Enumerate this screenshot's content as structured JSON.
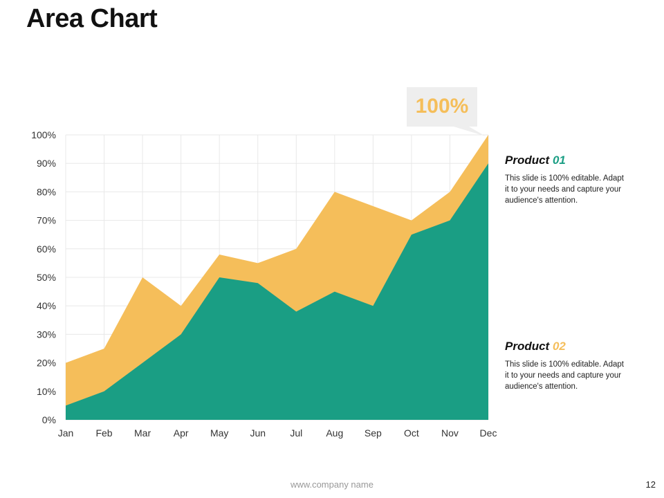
{
  "slide": {
    "title": "Area Chart",
    "footer": "www.company name",
    "page_number": "12"
  },
  "callout": {
    "label": "100%"
  },
  "legend": [
    {
      "prefix": "Product",
      "number": "01",
      "color": "#1a9e84",
      "description": "This slide is 100% editable. Adapt it to your needs and capture your audience's attention."
    },
    {
      "prefix": "Product",
      "number": "02",
      "color": "#f5be5a",
      "description": "This slide is 100% editable. Adapt it to your needs and capture your audience's attention."
    }
  ],
  "colors": {
    "product_01": "#1a9e84",
    "product_02": "#f5be5a",
    "callout_bg": "#eeeeee",
    "callout_text": "#f5be5a",
    "grid": "#e8e8e8"
  },
  "chart_data": {
    "type": "area",
    "title": "",
    "xlabel": "",
    "ylabel": "",
    "categories": [
      "Jan",
      "Feb",
      "Mar",
      "Apr",
      "May",
      "Jun",
      "Jul",
      "Aug",
      "Sep",
      "Oct",
      "Nov",
      "Dec"
    ],
    "series": [
      {
        "name": "Product 02",
        "values": [
          20,
          25,
          50,
          40,
          58,
          55,
          60,
          80,
          75,
          70,
          80,
          100
        ]
      },
      {
        "name": "Product 01",
        "values": [
          5,
          10,
          20,
          30,
          50,
          48,
          38,
          45,
          40,
          65,
          70,
          90
        ]
      }
    ],
    "ylim": [
      0,
      100
    ],
    "yticks": [
      "0%",
      "10%",
      "20%",
      "30%",
      "40%",
      "50%",
      "60%",
      "70%",
      "80%",
      "90%",
      "100%"
    ],
    "grid": true,
    "annotation": "100%"
  }
}
